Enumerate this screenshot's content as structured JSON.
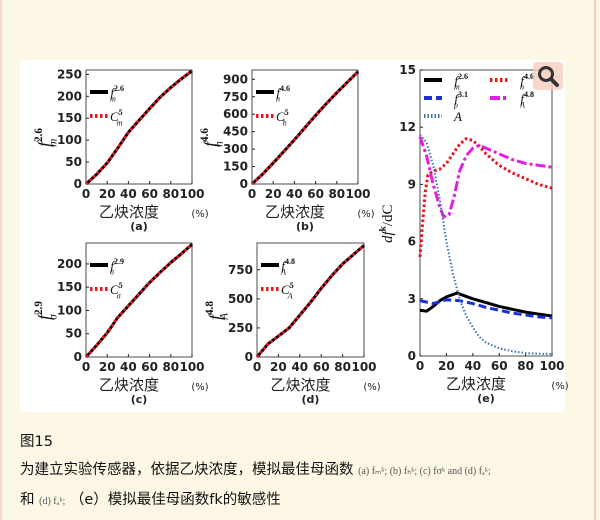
{
  "figure": {
    "label": "图15",
    "caption_line1": "为建立实验传感器，依据乙炔浓度，模拟最佳母函数",
    "caption_math1": "(a) fₘᵏ; (b) fₕᵏ; (c) fσᵏ and (d) fₐᵏ;",
    "caption_line2_prefix": "和",
    "caption_math2": "(d) fₐᵏ;",
    "caption_line2": "（e）模拟最佳母函数fk的敏感性",
    "zoom_icon": "magnifier-icon"
  },
  "chart_data": [
    {
      "type": "line",
      "panel_label": "(a)",
      "xlabel": "乙炔浓度",
      "xunit": "(%)",
      "ylabel": {
        "base": "f",
        "sub": "m",
        "sup": "2.6"
      },
      "xlim": [
        0,
        100
      ],
      "ylim": [
        0,
        260
      ],
      "xticks": [
        0,
        20,
        40,
        60,
        80,
        100
      ],
      "yticks": [
        0,
        50,
        100,
        150,
        200,
        250
      ],
      "x": [
        0,
        10,
        20,
        30,
        40,
        50,
        60,
        70,
        80,
        90,
        100
      ],
      "series": [
        {
          "name": {
            "base": "f",
            "sub": "m",
            "sup": "2.6"
          },
          "color": "#000000",
          "style": "solid",
          "values": [
            0,
            22,
            48,
            82,
            118,
            145,
            172,
            198,
            220,
            240,
            258
          ]
        },
        {
          "name": {
            "base": "C",
            "sub": "m",
            "sup": "5"
          },
          "color": "#e8141e",
          "style": "dotted",
          "values": [
            0,
            22,
            48,
            82,
            118,
            145,
            172,
            198,
            220,
            240,
            258
          ]
        }
      ]
    },
    {
      "type": "line",
      "panel_label": "(b)",
      "xlabel": "乙炔浓度",
      "xunit": "(%)",
      "ylabel": {
        "base": "f",
        "sub": "h",
        "sup": "4.6"
      },
      "xlim": [
        0,
        100
      ],
      "ylim": [
        0,
        980
      ],
      "xticks": [
        0,
        20,
        40,
        60,
        80,
        100
      ],
      "yticks": [
        0,
        150,
        300,
        450,
        600,
        750,
        900
      ],
      "x": [
        0,
        10,
        20,
        30,
        40,
        50,
        60,
        70,
        80,
        90,
        100
      ],
      "series": [
        {
          "name": {
            "base": "f",
            "sub": "h",
            "sup": "4.6"
          },
          "color": "#000000",
          "style": "solid",
          "values": [
            0,
            85,
            180,
            280,
            380,
            485,
            590,
            690,
            785,
            875,
            965
          ]
        },
        {
          "name": {
            "base": "C",
            "sub": "h",
            "sup": "5"
          },
          "color": "#e8141e",
          "style": "dotted",
          "values": [
            0,
            85,
            180,
            280,
            380,
            485,
            590,
            690,
            785,
            875,
            965
          ]
        }
      ]
    },
    {
      "type": "line",
      "panel_label": "(c)",
      "xlabel": "乙炔浓度",
      "xunit": "(%)",
      "ylabel": {
        "base": "f",
        "sub": "σ",
        "sup": "2.9"
      },
      "xlim": [
        0,
        100
      ],
      "ylim": [
        0,
        245
      ],
      "xticks": [
        0,
        20,
        40,
        60,
        80,
        100
      ],
      "yticks": [
        0,
        50,
        100,
        150,
        200
      ],
      "x": [
        0,
        10,
        20,
        30,
        40,
        50,
        60,
        70,
        80,
        90,
        100
      ],
      "series": [
        {
          "name": {
            "base": "f",
            "sub": "σ",
            "sup": "2.9"
          },
          "color": "#000000",
          "style": "solid",
          "values": [
            0,
            25,
            52,
            85,
            110,
            135,
            160,
            182,
            203,
            222,
            242
          ]
        },
        {
          "name": {
            "base": "C",
            "sub": "σ",
            "sup": "5"
          },
          "color": "#e8141e",
          "style": "dotted",
          "values": [
            0,
            25,
            52,
            85,
            110,
            135,
            160,
            182,
            203,
            222,
            242
          ]
        }
      ]
    },
    {
      "type": "line",
      "panel_label": "(d)",
      "xlabel": "乙炔浓度",
      "xunit": "(%)",
      "ylabel": {
        "base": "f",
        "sub": "A",
        "sup": "4.8"
      },
      "xlim": [
        0,
        100
      ],
      "ylim": [
        0,
        980
      ],
      "xticks": [
        0,
        20,
        40,
        60,
        80,
        100
      ],
      "yticks": [
        0,
        250,
        500,
        750
      ],
      "x": [
        0,
        10,
        20,
        30,
        40,
        50,
        60,
        70,
        80,
        90,
        100
      ],
      "series": [
        {
          "name": {
            "base": "f",
            "sub": "A",
            "sup": "4.8"
          },
          "color": "#000000",
          "style": "solid",
          "values": [
            0,
            110,
            180,
            250,
            360,
            470,
            590,
            700,
            800,
            880,
            960
          ]
        },
        {
          "name": {
            "base": "C",
            "sub": "A",
            "sup": "5"
          },
          "color": "#e8141e",
          "style": "dotted",
          "values": [
            0,
            110,
            180,
            250,
            360,
            470,
            590,
            700,
            800,
            880,
            960
          ]
        }
      ]
    },
    {
      "type": "line",
      "panel_label": "(e)",
      "xlabel": "乙炔浓度",
      "xunit": "(%)",
      "ylabel": {
        "base": "df",
        "sup": "k",
        "tail": "/dC"
      },
      "xlim": [
        0,
        100
      ],
      "ylim": [
        0,
        15
      ],
      "xticks": [
        0,
        20,
        40,
        60,
        80,
        100
      ],
      "yticks": [
        0,
        3,
        6,
        9,
        12,
        15
      ],
      "series": [
        {
          "name": {
            "base": "f",
            "sub": "m",
            "sup": "2.6"
          },
          "color": "#000000",
          "style": "solid",
          "x": [
            0,
            5,
            10,
            15,
            20,
            28,
            40,
            50,
            60,
            70,
            80,
            90,
            100
          ],
          "values": [
            2.4,
            2.35,
            2.6,
            2.9,
            3.1,
            3.3,
            3.0,
            2.8,
            2.6,
            2.45,
            2.3,
            2.2,
            2.1
          ]
        },
        {
          "name": {
            "base": "f",
            "sub": "h",
            "sup": "4.6"
          },
          "color": "#e8141e",
          "style": "dotted",
          "x": [
            0,
            2,
            4,
            6,
            10,
            15,
            20,
            25,
            30,
            35,
            40,
            45,
            50,
            60,
            70,
            80,
            90,
            100
          ],
          "values": [
            5.2,
            7.0,
            8.6,
            9.5,
            9.7,
            9.8,
            10.1,
            10.6,
            11.1,
            11.4,
            11.3,
            11.0,
            10.6,
            10.0,
            9.6,
            9.3,
            9.0,
            8.8
          ]
        },
        {
          "name": {
            "base": "f",
            "sub": "ρ",
            "sup": "3.1"
          },
          "color": "#1a2fd6",
          "style": "dashed",
          "x": [
            0,
            10,
            20,
            30,
            40,
            50,
            60,
            70,
            80,
            90,
            100
          ],
          "values": [
            2.9,
            2.75,
            2.95,
            2.9,
            2.75,
            2.55,
            2.4,
            2.25,
            2.15,
            2.05,
            2.0
          ]
        },
        {
          "name": {
            "base": "f",
            "sub": "A",
            "sup": "4.8"
          },
          "color": "#e020e0",
          "style": "dashdot",
          "x": [
            0,
            5,
            10,
            15,
            18,
            22,
            26,
            30,
            35,
            40,
            45,
            50,
            60,
            70,
            80,
            90,
            100
          ],
          "values": [
            11.5,
            10.5,
            9.0,
            7.8,
            7.3,
            7.4,
            8.4,
            9.7,
            10.5,
            10.9,
            11.05,
            10.9,
            10.6,
            10.3,
            10.1,
            10.0,
            9.9
          ]
        },
        {
          "name": {
            "base": "A"
          },
          "color": "#3a6fb0",
          "style": "dotted-fine",
          "x": [
            0,
            5,
            10,
            15,
            20,
            25,
            30,
            35,
            40,
            45,
            50,
            60,
            70,
            80,
            90,
            100
          ],
          "values": [
            11.6,
            11.2,
            10.0,
            8.2,
            6.0,
            4.3,
            3.0,
            2.1,
            1.5,
            1.0,
            0.7,
            0.4,
            0.25,
            0.15,
            0.12,
            0.1
          ]
        }
      ]
    }
  ]
}
